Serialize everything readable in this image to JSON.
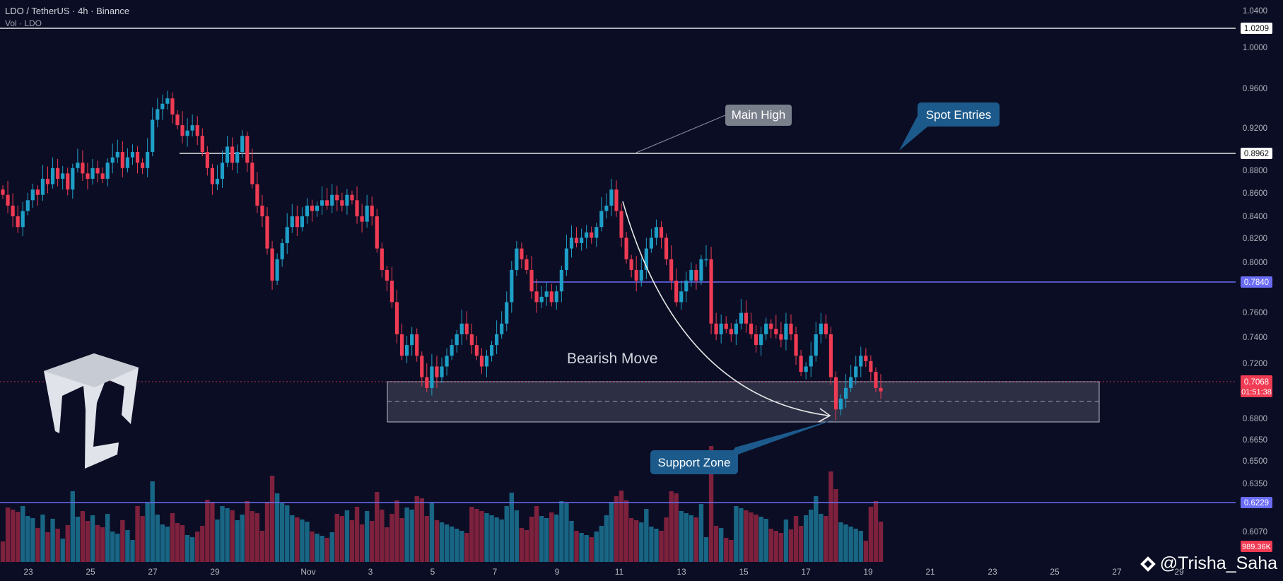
{
  "header": {
    "symbol_line": "LDO / TetherUS · 4h · Binance",
    "vol_line": "Vol · LDO"
  },
  "watermark": {
    "text": "@Trisha_Saha"
  },
  "colors": {
    "background": "#0b0d24",
    "bull": "#1e9fc7",
    "bear": "#ef3b53",
    "white_line": "#e8e8e8",
    "blue_line": "#6b6cf5",
    "label_dark": "#1c5a8c",
    "label_gray": "#7a7f8c"
  },
  "chart_data": {
    "type": "candlestick",
    "symbol": "LDO / TetherUS",
    "timeframe": "4h",
    "exchange": "Binance",
    "x_tick_labels": [
      "23",
      "25",
      "27",
      "29",
      "Nov",
      "3",
      "5",
      "7",
      "9",
      "11",
      "13",
      "15",
      "17",
      "19",
      "21",
      "23",
      "25",
      "27",
      "29"
    ],
    "y_tick_labels": [
      "1.0400",
      "1.0000",
      "0.9600",
      "0.9200",
      "0.8800",
      "0.8600",
      "0.8400",
      "0.8200",
      "0.8000",
      "0.7600",
      "0.7400",
      "0.7200",
      "0.6800",
      "0.6650",
      "0.6500",
      "0.6350",
      "0.6070"
    ],
    "ylim": [
      0.6,
      1.045
    ],
    "price_levels": [
      {
        "value": 1.0209,
        "label": "1.0209",
        "color": "#e8e8e8",
        "style": "solid",
        "span": "full"
      },
      {
        "value": 0.8962,
        "label": "0.8962",
        "color": "#e8e8e8",
        "style": "solid",
        "span": "from Oct 28"
      },
      {
        "value": 0.784,
        "label": "0.7840",
        "color": "#6b6cf5",
        "style": "solid",
        "span": "from Nov 8"
      },
      {
        "value": 0.6229,
        "label": "0.6229",
        "color": "#6b6cf5",
        "style": "solid",
        "span": "full"
      }
    ],
    "current_price": {
      "value": 0.7068,
      "label": "0.7068",
      "countdown": "01:51:38"
    },
    "volume_label": "989.36K",
    "support_zone": {
      "top": 0.71,
      "bottom": 0.679,
      "mid": 0.6945,
      "from": "Nov 4",
      "to": "Dec 4"
    },
    "closes": [
      0.89,
      0.88,
      0.87,
      0.86,
      0.875,
      0.885,
      0.895,
      0.89,
      0.905,
      0.9,
      0.915,
      0.905,
      0.91,
      0.895,
      0.915,
      0.92,
      0.91,
      0.905,
      0.915,
      0.91,
      0.905,
      0.92,
      0.925,
      0.93,
      0.915,
      0.925,
      0.93,
      0.92,
      0.915,
      0.93,
      0.96,
      0.97,
      0.975,
      0.98,
      0.965,
      0.955,
      0.945,
      0.95,
      0.955,
      0.945,
      0.93,
      0.915,
      0.9,
      0.905,
      0.92,
      0.935,
      0.92,
      0.93,
      0.945,
      0.92,
      0.9,
      0.88,
      0.87,
      0.84,
      0.81,
      0.83,
      0.845,
      0.86,
      0.87,
      0.86,
      0.87,
      0.88,
      0.875,
      0.88,
      0.885,
      0.88,
      0.89,
      0.885,
      0.88,
      0.89,
      0.885,
      0.87,
      0.865,
      0.88,
      0.87,
      0.84,
      0.82,
      0.81,
      0.79,
      0.76,
      0.74,
      0.75,
      0.76,
      0.74,
      0.72,
      0.71,
      0.73,
      0.72,
      0.73,
      0.74,
      0.75,
      0.76,
      0.77,
      0.76,
      0.75,
      0.74,
      0.73,
      0.74,
      0.75,
      0.76,
      0.77,
      0.79,
      0.82,
      0.84,
      0.83,
      0.82,
      0.8,
      0.79,
      0.795,
      0.8,
      0.79,
      0.8,
      0.82,
      0.84,
      0.85,
      0.845,
      0.85,
      0.855,
      0.85,
      0.86,
      0.875,
      0.88,
      0.895,
      0.875,
      0.85,
      0.83,
      0.82,
      0.81,
      0.82,
      0.84,
      0.85,
      0.86,
      0.85,
      0.83,
      0.81,
      0.79,
      0.8,
      0.81,
      0.82,
      0.81,
      0.83,
      0.83,
      0.77,
      0.76,
      0.77,
      0.765,
      0.76,
      0.77,
      0.78,
      0.77,
      0.76,
      0.75,
      0.76,
      0.77,
      0.765,
      0.76,
      0.755,
      0.77,
      0.76,
      0.74,
      0.725,
      0.73,
      0.74,
      0.76,
      0.77,
      0.76,
      0.72,
      0.69,
      0.7,
      0.71,
      0.72,
      0.73,
      0.74,
      0.735,
      0.725,
      0.71,
      0.7068
    ]
  },
  "annotations": {
    "main_high": "Main High",
    "spot_entries": "Spot Entries",
    "support_zone": "Support Zone",
    "bearish_move": "Bearish Move"
  }
}
